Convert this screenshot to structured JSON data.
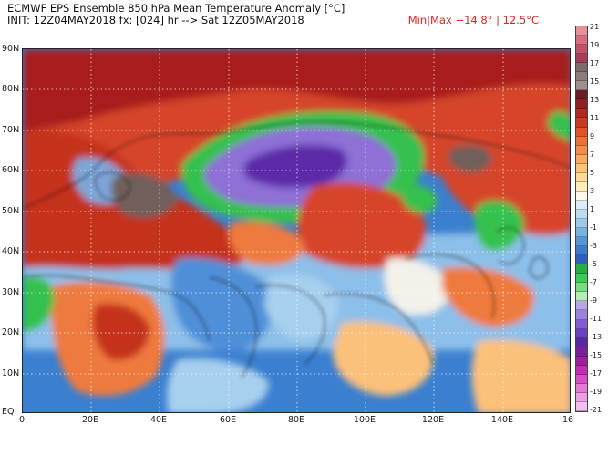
{
  "title": {
    "line1": "ECMWF EPS Ensemble 850 hPa Mean Temperature Anomaly [°C]",
    "line2": "INIT: 12Z04MAY2018 fx: [024] hr --> Sat 12Z05MAY2018",
    "minmax": "Min|Max −14.8° | 12.5°C"
  },
  "axes": {
    "lat_labels": [
      "90N",
      "80N",
      "70N",
      "60N",
      "50N",
      "40N",
      "30N",
      "20N",
      "10N",
      "EQ"
    ],
    "lon_labels": [
      "0",
      "20E",
      "40E",
      "60E",
      "80E",
      "100E",
      "120E",
      "140E",
      "16"
    ]
  },
  "colorbar": {
    "labels": [
      "21",
      "19",
      "17",
      "15",
      "13",
      "11",
      "9",
      "7",
      "5",
      "3",
      "1",
      "-1",
      "-3",
      "-5",
      "-7",
      "-9",
      "-11",
      "-13",
      "-15",
      "-17",
      "-19",
      "-21"
    ],
    "colors": [
      "#e8909a",
      "#d86e80",
      "#c25068",
      "#a83c56",
      "#7a6a6a",
      "#8c7c7c",
      "#a08f8f",
      "#6e1a22",
      "#901e22",
      "#b3281f",
      "#cc3a1f",
      "#e0532a",
      "#ee7036",
      "#f38d49",
      "#f7ab5f",
      "#fac479",
      "#fcdc95",
      "#fdeeb9",
      "#fffbea",
      "#dbecf8",
      "#bcdcf2",
      "#9bc9ec",
      "#78b2e3",
      "#5695d8",
      "#3f7ccf",
      "#2d5fbf",
      "#24b040",
      "#3ccc54",
      "#77dd7f",
      "#b4ecb3",
      "#b8a7e7",
      "#9b82dc",
      "#7f5ed0",
      "#6a3fc2",
      "#5a26a8",
      "#7a1f9a",
      "#a01e9a",
      "#c22bb5",
      "#d84cc8",
      "#e27ad6",
      "#ee9fe3",
      "#f2c0ee"
    ]
  },
  "map_colors": {
    "background": "#3a7fd0",
    "warm_dark": "#a81f1a",
    "warm": "#d6452a",
    "warm_mid": "#ef7a3c",
    "warm_light": "#fbc07a",
    "neutral": "#f3f1ea",
    "cool_light": "#a7cfee",
    "cool": "#4f8fd8",
    "green": "#34c14e",
    "violet": "#8e6fd6",
    "purple_dark": "#5b2aa8",
    "brown": "#6f5e5a"
  }
}
